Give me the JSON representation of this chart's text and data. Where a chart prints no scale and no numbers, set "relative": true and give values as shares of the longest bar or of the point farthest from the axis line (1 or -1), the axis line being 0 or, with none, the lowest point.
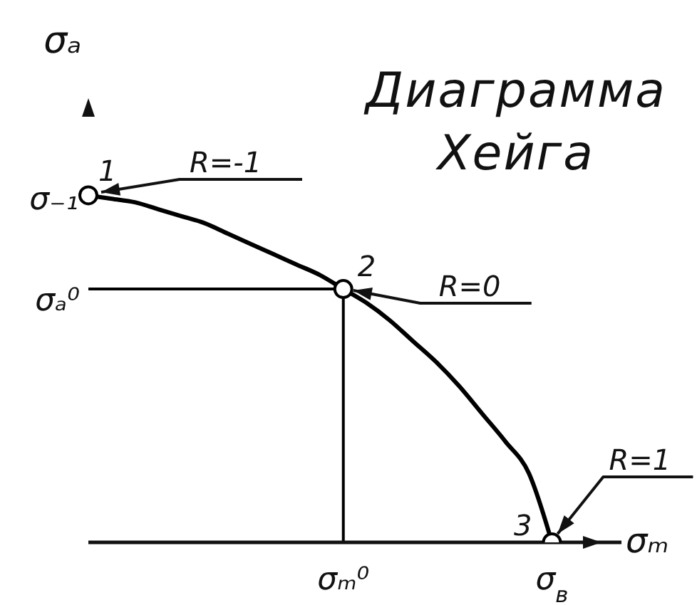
{
  "chart_data": {
    "type": "line",
    "title": "Диаграмма Хейга",
    "xlabel": "σₘ",
    "ylabel": "σₐ",
    "relative": true,
    "categories": [
      null,
      null,
      null,
      null,
      null,
      null,
      null,
      null,
      null,
      null,
      null,
      "σₘ⁰",
      null,
      null,
      null,
      null,
      null,
      null,
      null,
      null,
      "σ$_{в}$",
      null,
      null,
      null
    ],
    "series": [
      {
        "color": "#000000",
        "values": [
          1,
          0.99,
          0.98,
          0.96,
          0.94,
          0.92,
          0.89,
          0.86,
          0.83,
          0.8,
          0.77,
          0.73,
          0.69,
          0.64,
          0.58,
          0.52,
          0.45,
          0.37,
          0.29,
          0.2,
          0,
          null,
          null,
          null
        ]
      },
      {
        "type": "scatter",
        "color": "#000000",
        "marker": "circle",
        "values": [
          1,
          null,
          null,
          null,
          null,
          null,
          null,
          null,
          null,
          null,
          null,
          0.73,
          null,
          null,
          null,
          null,
          null,
          null,
          null,
          null,
          0,
          null,
          null,
          null
        ]
      }
    ],
    "ref_lines": [
      {
        "axis": "y",
        "value": 0.73,
        "label": "σₐ⁰",
        "color": "#000000"
      },
      {
        "axis": "x",
        "value": "σₘ⁰",
        "color": "#000000"
      }
    ],
    "annotations": [
      "σ₋₁",
      {
        "text": "1",
        "y": 1
      },
      "R=-1",
      {
        "text": "2",
        "x": "σₘ⁰",
        "y": 0.73
      },
      {
        "text": "R=0",
        "x": "σₘ⁰",
        "y": 0.73
      },
      {
        "text": "3",
        "x": "σ$_{в}$",
        "y": 0
      },
      {
        "text": "R=1",
        "x": "σ$_{в}$",
        "y": 0
      }
    ]
  }
}
